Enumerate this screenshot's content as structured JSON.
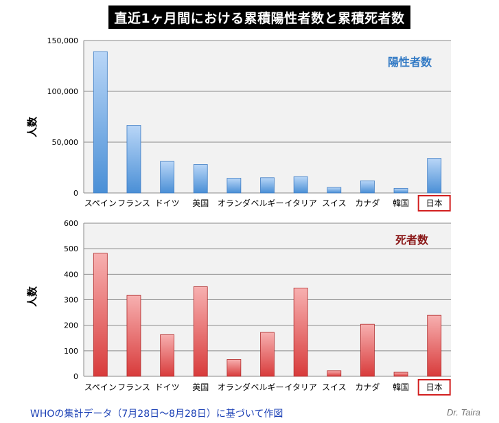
{
  "title": "直近1ヶ月間における累積陽性者数と累積死者数",
  "footer": {
    "source": "WHOの集計データ（7月28日〜8月28日）に基づいて作図",
    "author": "Dr. Taira"
  },
  "highlight_category": "日本",
  "chart_data": [
    {
      "type": "bar",
      "title": "陽性者数",
      "ylabel": "人数",
      "xlabel": "",
      "ylim": [
        0,
        150000
      ],
      "yticks": [
        0,
        50000,
        100000,
        150000
      ],
      "ytick_labels": [
        "0",
        "50,000",
        "100,000",
        "150,000"
      ],
      "grid": true,
      "color": "#5b9bd5",
      "title_color": "#2f78c4",
      "categories": [
        "スペイン",
        "フランス",
        "ドイツ",
        "英国",
        "オランダ",
        "ベルギー",
        "イタリア",
        "スイス",
        "カナダ",
        "韓国",
        "日本"
      ],
      "values": [
        139000,
        66500,
        31000,
        28000,
        14500,
        15000,
        16000,
        5500,
        12000,
        4500,
        34000
      ]
    },
    {
      "type": "bar",
      "title": "死者数",
      "ylabel": "人数",
      "xlabel": "",
      "ylim": [
        0,
        600
      ],
      "yticks": [
        0,
        100,
        200,
        300,
        400,
        500,
        600
      ],
      "ytick_labels": [
        "0",
        "100",
        "200",
        "300",
        "400",
        "500",
        "600"
      ],
      "grid": true,
      "color": "#e05050",
      "title_color": "#8b1a1a",
      "categories": [
        "スペイン",
        "フランス",
        "ドイツ",
        "英国",
        "オランダ",
        "ベルギー",
        "イタリア",
        "スイス",
        "カナダ",
        "韓国",
        "日本"
      ],
      "values": [
        482,
        317,
        163,
        351,
        66,
        172,
        346,
        22,
        204,
        16,
        239
      ]
    }
  ]
}
